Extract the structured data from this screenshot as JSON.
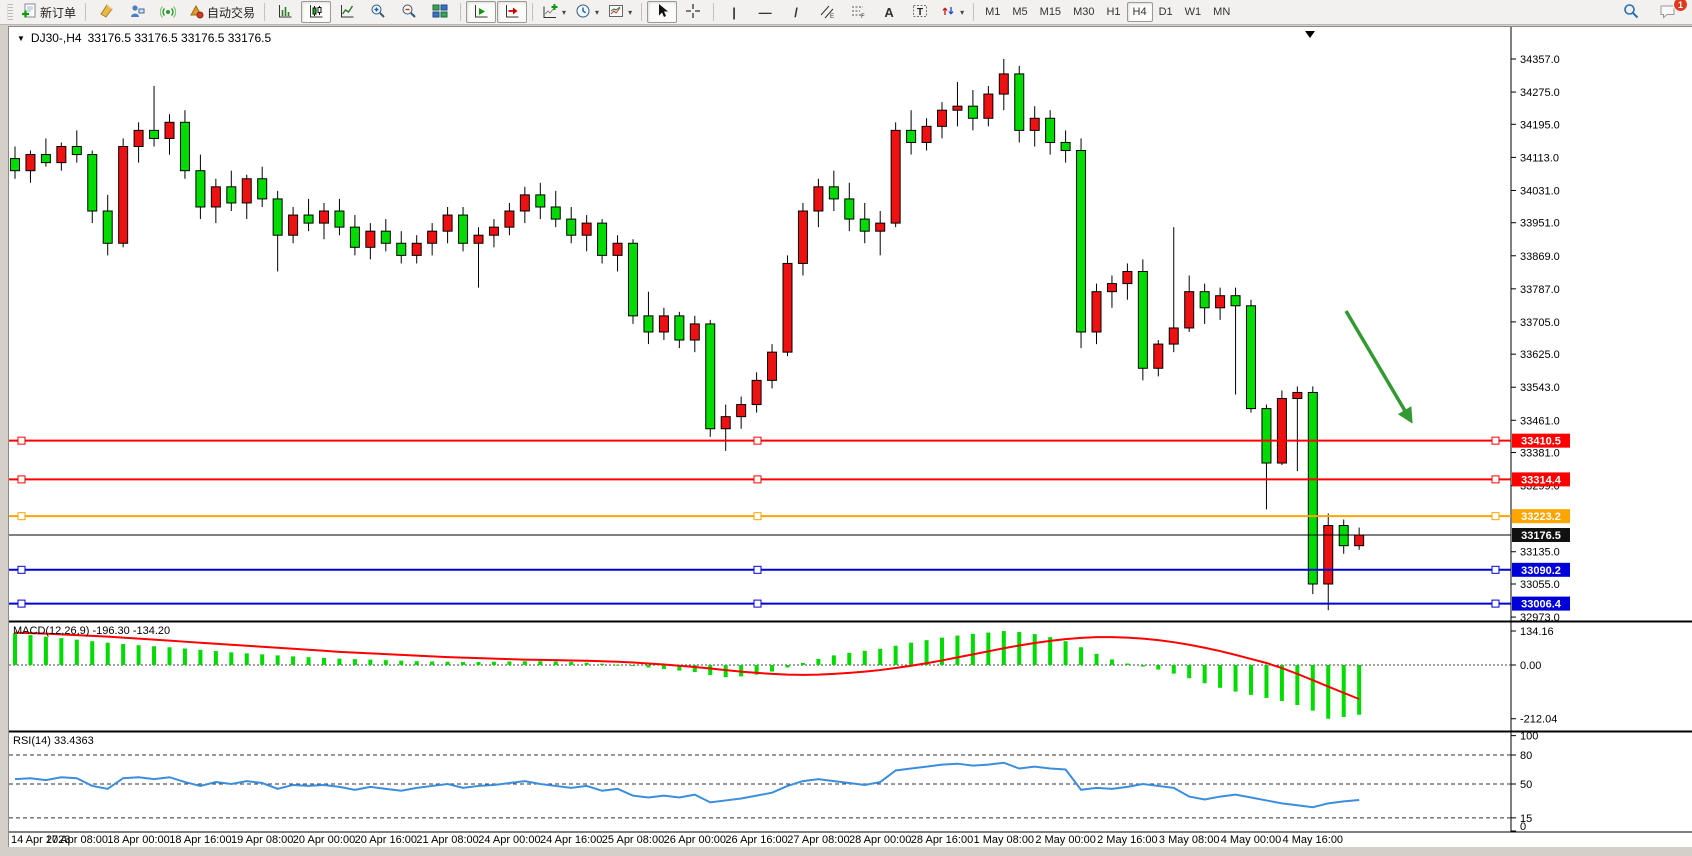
{
  "toolbar": {
    "new_order_label": "新订单",
    "autotrading_label": "自动交易",
    "timeframes": [
      "M1",
      "M5",
      "M15",
      "M30",
      "H1",
      "H4",
      "D1",
      "W1",
      "MN"
    ],
    "active_timeframe": "H4",
    "notification_count": "1",
    "icons": [
      "new-order-icon",
      "metaeditor-icon",
      "virtual-hosting-icon",
      "signals-icon",
      "autotrading-icon",
      "bar-chart-icon",
      "candlestick-chart-icon",
      "line-chart-icon",
      "zoom-in-icon",
      "zoom-out-icon",
      "tile-windows-icon",
      "auto-scroll-icon",
      "chart-shift-icon",
      "indicators-icon",
      "periods-icon",
      "templates-icon",
      "cursor-icon",
      "crosshair-icon",
      "vertical-line-icon",
      "horizontal-line-icon",
      "trendline-icon",
      "equidistant-channel-icon",
      "fibonacci-icon",
      "text-icon",
      "text-label-icon",
      "arrows-icon",
      "search-icon",
      "chat-icon"
    ]
  },
  "chart_data": {
    "type": "candlestick",
    "symbol": "DJ30-",
    "timeframe": "H4",
    "title": "DJ30-,H4",
    "quote_line": "33176.5 33176.5 33176.5 33176.5",
    "colors": {
      "bull": "#ee1111",
      "bear": "#00dc00",
      "macd_hist": "#00dc00",
      "macd_signal": "#ff0000",
      "rsi_line": "#3b8edb",
      "arrow": "#339933"
    },
    "x_labels": [
      "14 Apr 2023",
      "17 Apr 08:00",
      "18 Apr 00:00",
      "18 Apr 16:00",
      "19 Apr 08:00",
      "20 Apr 00:00",
      "20 Apr 16:00",
      "21 Apr 08:00",
      "24 Apr 00:00",
      "24 Apr 16:00",
      "25 Apr 08:00",
      "26 Apr 00:00",
      "26 Apr 16:00",
      "27 Apr 08:00",
      "28 Apr 00:00",
      "28 Apr 16:00",
      "1 May 08:00",
      "2 May 00:00",
      "2 May 16:00",
      "3 May 08:00",
      "4 May 00:00",
      "4 May 16:00"
    ],
    "y_ticks": [
      "34357.0",
      "34275.0",
      "34195.0",
      "34113.0",
      "34031.0",
      "33951.0",
      "33869.0",
      "33787.0",
      "33705.0",
      "33625.0",
      "33543.0",
      "33461.0",
      "33381.0",
      "33299.0",
      "33135.0",
      "33055.0",
      "32973.0"
    ],
    "hlines": [
      {
        "price": 33410.5,
        "label": "33410.5",
        "color": "#ff0000"
      },
      {
        "price": 33314.4,
        "label": "33314.4",
        "color": "#ff0000"
      },
      {
        "price": 33223.2,
        "label": "33223.2",
        "color": "#ffa500"
      },
      {
        "price": 33090.2,
        "label": "33090.2",
        "color": "#0000d8"
      },
      {
        "price": 33006.4,
        "label": "33006.4",
        "color": "#0000d8"
      }
    ],
    "current_price": {
      "price": 33176.5,
      "label": "33176.5",
      "color": "#111111"
    },
    "arrow_annotation": {
      "color": "#339933",
      "direction": "down-right"
    },
    "candles_ohlc": [
      [
        34110,
        34140,
        34060,
        34080
      ],
      [
        34080,
        34130,
        34050,
        34120
      ],
      [
        34120,
        34160,
        34090,
        34100
      ],
      [
        34100,
        34150,
        34080,
        34140
      ],
      [
        34140,
        34180,
        34100,
        34120
      ],
      [
        34120,
        34130,
        33950,
        33980
      ],
      [
        33980,
        34020,
        33870,
        33900
      ],
      [
        33900,
        34160,
        33890,
        34140
      ],
      [
        34140,
        34200,
        34100,
        34180
      ],
      [
        34180,
        34290,
        34140,
        34160
      ],
      [
        34160,
        34220,
        34120,
        34200
      ],
      [
        34200,
        34230,
        34060,
        34080
      ],
      [
        34080,
        34120,
        33960,
        33990
      ],
      [
        33990,
        34060,
        33950,
        34040
      ],
      [
        34040,
        34080,
        33980,
        34000
      ],
      [
        34000,
        34070,
        33960,
        34060
      ],
      [
        34060,
        34090,
        33990,
        34010
      ],
      [
        34010,
        34030,
        33830,
        33920
      ],
      [
        33920,
        33990,
        33900,
        33970
      ],
      [
        33970,
        34010,
        33930,
        33950
      ],
      [
        33950,
        34000,
        33910,
        33980
      ],
      [
        33980,
        34010,
        33920,
        33940
      ],
      [
        33940,
        33970,
        33870,
        33890
      ],
      [
        33890,
        33950,
        33860,
        33930
      ],
      [
        33930,
        33960,
        33880,
        33900
      ],
      [
        33900,
        33930,
        33850,
        33870
      ],
      [
        33870,
        33920,
        33850,
        33900
      ],
      [
        33900,
        33950,
        33870,
        33930
      ],
      [
        33930,
        33990,
        33900,
        33970
      ],
      [
        33970,
        33990,
        33880,
        33900
      ],
      [
        33900,
        33940,
        33790,
        33920
      ],
      [
        33920,
        33960,
        33890,
        33940
      ],
      [
        33940,
        34000,
        33920,
        33980
      ],
      [
        33980,
        34040,
        33950,
        34020
      ],
      [
        34020,
        34050,
        33960,
        33990
      ],
      [
        33990,
        34030,
        33940,
        33960
      ],
      [
        33960,
        33990,
        33900,
        33920
      ],
      [
        33920,
        33970,
        33880,
        33950
      ],
      [
        33950,
        33960,
        33850,
        33870
      ],
      [
        33870,
        33920,
        33830,
        33900
      ],
      [
        33900,
        33910,
        33700,
        33720
      ],
      [
        33720,
        33780,
        33650,
        33680
      ],
      [
        33680,
        33740,
        33660,
        33720
      ],
      [
        33720,
        33730,
        33640,
        33660
      ],
      [
        33660,
        33720,
        33630,
        33700
      ],
      [
        33700,
        33710,
        33420,
        33440
      ],
      [
        33440,
        33500,
        33385,
        33470
      ],
      [
        33470,
        33520,
        33440,
        33500
      ],
      [
        33500,
        33580,
        33480,
        33560
      ],
      [
        33560,
        33650,
        33540,
        33630
      ],
      [
        33630,
        33870,
        33620,
        33850
      ],
      [
        33850,
        34000,
        33820,
        33980
      ],
      [
        33980,
        34060,
        33940,
        34040
      ],
      [
        34040,
        34080,
        33980,
        34010
      ],
      [
        34010,
        34050,
        33930,
        33960
      ],
      [
        33960,
        34000,
        33900,
        33930
      ],
      [
        33930,
        33980,
        33870,
        33950
      ],
      [
        33950,
        34200,
        33940,
        34180
      ],
      [
        34180,
        34230,
        34120,
        34150
      ],
      [
        34150,
        34210,
        34130,
        34190
      ],
      [
        34190,
        34250,
        34160,
        34230
      ],
      [
        34230,
        34300,
        34190,
        34240
      ],
      [
        34240,
        34280,
        34180,
        34210
      ],
      [
        34210,
        34290,
        34190,
        34270
      ],
      [
        34270,
        34357,
        34230,
        34320
      ],
      [
        34320,
        34340,
        34150,
        34180
      ],
      [
        34180,
        34240,
        34140,
        34210
      ],
      [
        34210,
        34230,
        34120,
        34150
      ],
      [
        34150,
        34180,
        34100,
        34130
      ],
      [
        34130,
        34160,
        33640,
        33680
      ],
      [
        33680,
        33800,
        33650,
        33780
      ],
      [
        33780,
        33820,
        33740,
        33800
      ],
      [
        33800,
        33850,
        33760,
        33830
      ],
      [
        33830,
        33860,
        33560,
        33590
      ],
      [
        33590,
        33660,
        33570,
        33650
      ],
      [
        33650,
        33940,
        33630,
        33690
      ],
      [
        33690,
        33820,
        33680,
        33780
      ],
      [
        33780,
        33800,
        33700,
        33740
      ],
      [
        33740,
        33790,
        33710,
        33770
      ],
      [
        33770,
        33790,
        33525,
        33745
      ],
      [
        33745,
        33760,
        33480,
        33490
      ],
      [
        33490,
        33500,
        33240,
        33355
      ],
      [
        33355,
        33535,
        33350,
        33515
      ],
      [
        33515,
        33545,
        33335,
        33530
      ],
      [
        33530,
        33545,
        33030,
        33055
      ],
      [
        33055,
        33230,
        32990,
        33200
      ],
      [
        33200,
        33215,
        33130,
        33150
      ],
      [
        33150,
        33195,
        33140,
        33176.5
      ]
    ],
    "macd": {
      "label": "MACD(12,26,9) -196.30 -134.20",
      "axis": [
        "134.16",
        "0.00",
        "-212.04"
      ],
      "histogram": [
        125,
        118,
        112,
        106,
        100,
        94,
        88,
        83,
        78,
        74,
        70,
        65,
        60,
        55,
        50,
        46,
        42,
        38,
        34,
        31,
        28,
        25,
        23,
        21,
        19,
        17,
        15,
        14,
        13,
        12,
        12,
        13,
        14,
        15,
        15,
        14,
        12,
        9,
        5,
        1,
        -4,
        -10,
        -16,
        -22,
        -28,
        -40,
        -48,
        -45,
        -38,
        -26,
        -10,
        8,
        24,
        38,
        48,
        56,
        64,
        76,
        88,
        98,
        108,
        116,
        123,
        128,
        134,
        130,
        122,
        110,
        94,
        70,
        44,
        22,
        6,
        -6,
        -18,
        -34,
        -52,
        -72,
        -90,
        -105,
        -118,
        -130,
        -142,
        -158,
        -180,
        -212,
        -205,
        -196.3
      ],
      "signal": [
        128,
        126,
        124,
        121,
        118,
        115,
        112,
        108,
        104,
        100,
        96,
        92,
        88,
        84,
        80,
        76,
        72,
        68,
        64,
        60,
        56,
        52,
        49,
        46,
        43,
        40,
        37,
        34,
        31,
        29,
        27,
        25,
        23,
        21,
        20,
        19,
        18,
        17,
        15,
        13,
        10,
        6,
        2,
        -3,
        -8,
        -14,
        -20,
        -26,
        -31,
        -35,
        -38,
        -39,
        -38,
        -35,
        -31,
        -26,
        -20,
        -12,
        -3,
        7,
        18,
        30,
        42,
        54,
        66,
        77,
        87,
        95,
        102,
        107,
        110,
        110,
        108,
        104,
        98,
        90,
        80,
        68,
        55,
        40,
        24,
        8,
        -12,
        -35,
        -60,
        -85,
        -110,
        -134.2
      ]
    },
    "rsi": {
      "label": "RSI(14) 33.4363",
      "axis": [
        "100",
        "80",
        "50",
        "15",
        "0"
      ],
      "levels": [
        80,
        50,
        15
      ],
      "values": [
        55,
        56,
        54,
        57,
        56,
        48,
        45,
        56,
        57,
        55,
        57,
        52,
        48,
        52,
        50,
        53,
        51,
        45,
        49,
        48,
        49,
        47,
        44,
        47,
        45,
        43,
        46,
        48,
        50,
        46,
        48,
        49,
        51,
        53,
        50,
        48,
        46,
        48,
        43,
        45,
        38,
        36,
        38,
        36,
        39,
        31,
        33,
        35,
        38,
        41,
        48,
        53,
        55,
        53,
        51,
        49,
        52,
        64,
        66,
        68,
        70,
        71,
        69,
        70,
        72,
        66,
        68,
        66,
        65,
        44,
        46,
        45,
        47,
        50,
        48,
        46,
        37,
        34,
        37,
        39,
        36,
        33,
        30,
        28,
        26,
        30,
        32,
        33.44
      ]
    }
  }
}
